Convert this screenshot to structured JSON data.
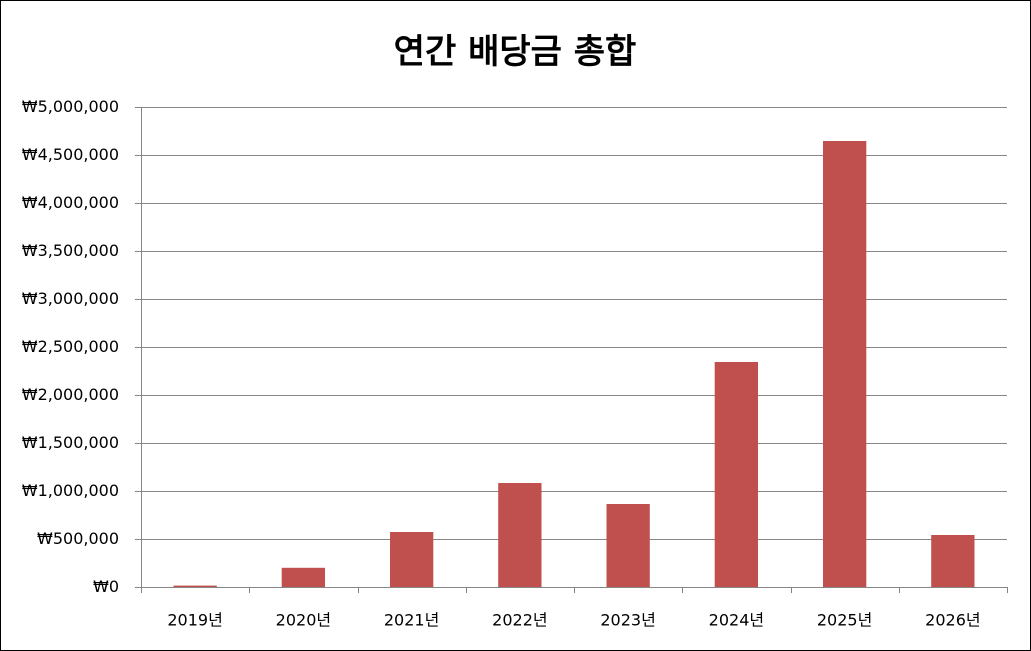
{
  "chart_data": {
    "type": "bar",
    "title": "연간 배당금 총합",
    "categories": [
      "2019년",
      "2020년",
      "2021년",
      "2022년",
      "2023년",
      "2024년",
      "2025년",
      "2026년"
    ],
    "values": [
      15000,
      200000,
      573000,
      1083000,
      865000,
      2344000,
      4646000,
      542000
    ],
    "ylim": [
      0,
      5000000
    ],
    "yticks": [
      0,
      500000,
      1000000,
      1500000,
      2000000,
      2500000,
      3000000,
      3500000,
      4000000,
      4500000,
      5000000
    ],
    "y_tick_labels": [
      "₩0",
      "₩500,000",
      "₩1,000,000",
      "₩1,500,000",
      "₩2,000,000",
      "₩2,500,000",
      "₩3,000,000",
      "₩3,500,000",
      "₩4,000,000",
      "₩4,500,000",
      "₩5,000,000"
    ],
    "grid": true,
    "show_legend": false,
    "bar_color": "#C0504D",
    "gridline_color": "#868686"
  }
}
